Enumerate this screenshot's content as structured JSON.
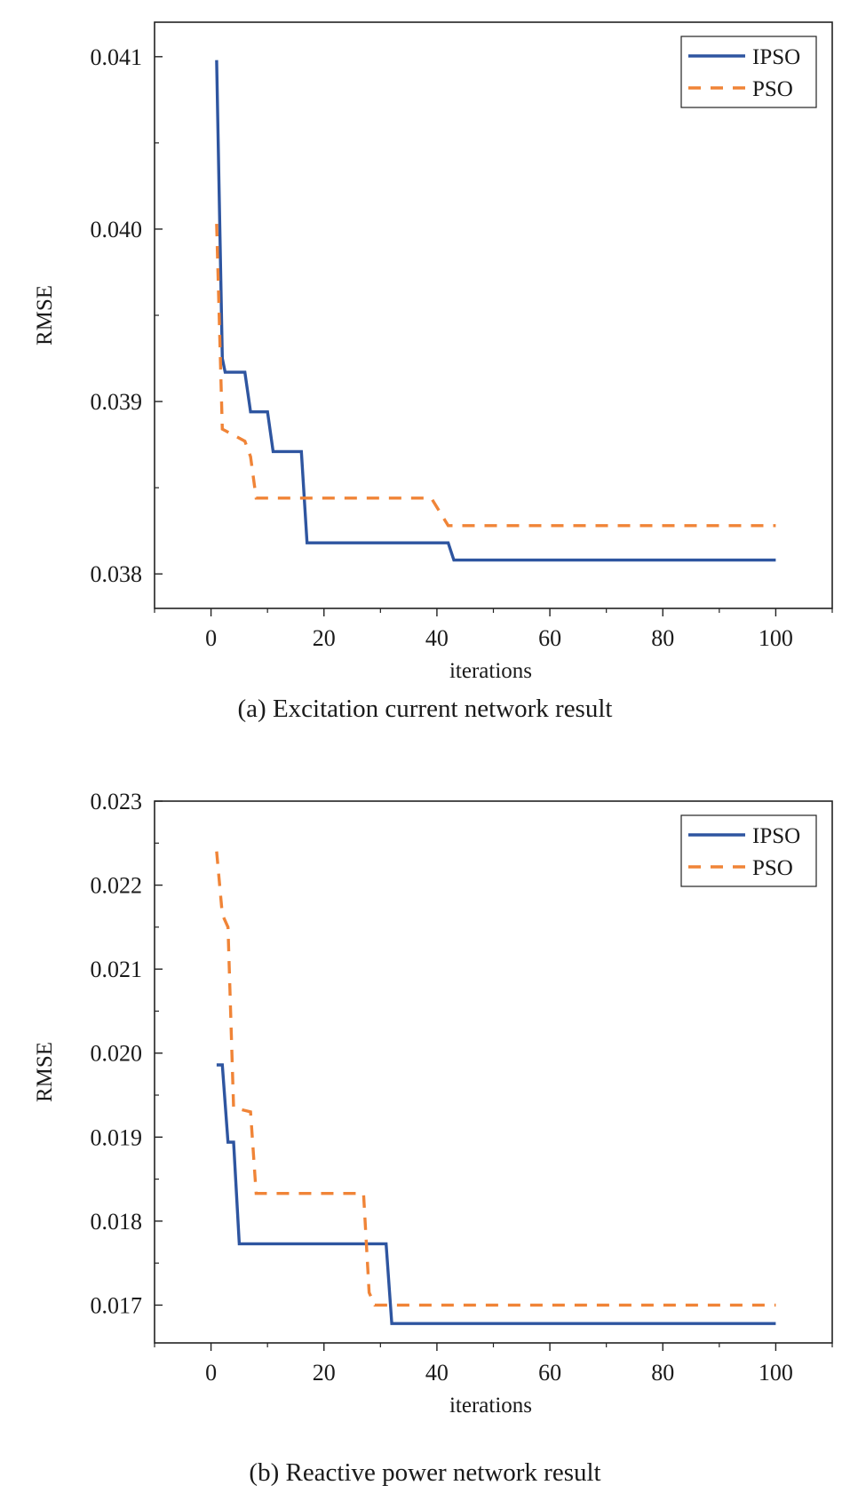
{
  "chart_data": [
    {
      "type": "line",
      "caption": "(a) Excitation current network result",
      "xlabel": "iterations",
      "ylabel": "RMSE",
      "xlim": [
        -10,
        110
      ],
      "ylim": [
        0.0378,
        0.0412
      ],
      "xticks": [
        0,
        20,
        40,
        60,
        80,
        100
      ],
      "xtick_labels": [
        "0",
        "20",
        "40",
        "60",
        "80",
        "100"
      ],
      "yticks": [
        0.038,
        0.039,
        0.04,
        0.041
      ],
      "ytick_labels": [
        "0.038",
        "0.039",
        "0.040",
        "0.041"
      ],
      "grid": false,
      "legend_position": "top-right",
      "series": [
        {
          "name": "IPSO",
          "color": "#2e55a0",
          "style": "solid",
          "x": [
            1,
            2,
            2.5,
            6,
            7,
            10,
            11,
            16,
            17,
            42,
            43,
            100
          ],
          "y": [
            0.04098,
            0.03925,
            0.03917,
            0.03917,
            0.03894,
            0.03894,
            0.03871,
            0.03871,
            0.03818,
            0.03818,
            0.03808,
            0.03808
          ]
        },
        {
          "name": "PSO",
          "color": "#f08437",
          "style": "dashed",
          "x": [
            1,
            2,
            6,
            7,
            8,
            39,
            42,
            100
          ],
          "y": [
            0.04003,
            0.03884,
            0.03877,
            0.03868,
            0.03844,
            0.03844,
            0.03828,
            0.03828
          ]
        }
      ]
    },
    {
      "type": "line",
      "caption": "(b) Reactive power network result",
      "xlabel": "iterations",
      "ylabel": "RMSE",
      "xlim": [
        -10,
        110
      ],
      "ylim": [
        0.01655,
        0.023
      ],
      "xticks": [
        0,
        20,
        40,
        60,
        80,
        100
      ],
      "xtick_labels": [
        "0",
        "20",
        "40",
        "60",
        "80",
        "100"
      ],
      "yticks": [
        0.017,
        0.018,
        0.019,
        0.02,
        0.021,
        0.022,
        0.023
      ],
      "ytick_labels": [
        "0.017",
        "0.018",
        "0.019",
        "0.020",
        "0.021",
        "0.022",
        "0.023"
      ],
      "grid": false,
      "legend_position": "top-right",
      "series": [
        {
          "name": "IPSO",
          "color": "#2e55a0",
          "style": "solid",
          "x": [
            1,
            2,
            3,
            4,
            5,
            31,
            32,
            100
          ],
          "y": [
            0.01986,
            0.01986,
            0.01894,
            0.01894,
            0.01773,
            0.01773,
            0.01678,
            0.01678
          ]
        },
        {
          "name": "PSO",
          "color": "#f08437",
          "style": "dashed",
          "x": [
            1,
            2,
            3,
            4,
            7,
            8,
            27,
            28,
            29,
            100
          ],
          "y": [
            0.0224,
            0.02165,
            0.0215,
            0.01935,
            0.0193,
            0.01833,
            0.01833,
            0.01715,
            0.017,
            0.017
          ]
        }
      ]
    }
  ]
}
